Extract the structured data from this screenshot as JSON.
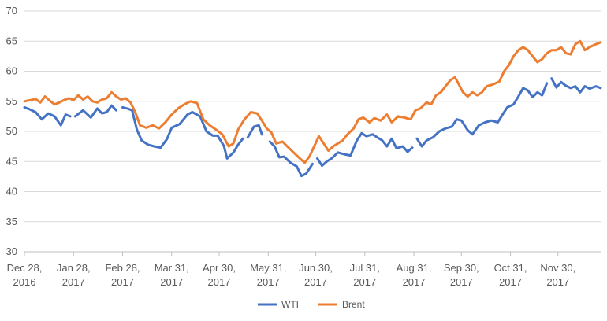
{
  "chart_data": {
    "type": "line",
    "title": "",
    "xlabel": "",
    "ylabel": "",
    "ylim": [
      30,
      70
    ],
    "yticks": [
      30,
      35,
      40,
      45,
      50,
      55,
      60,
      65,
      70
    ],
    "grid": true,
    "legend_position": "bottom",
    "x_range": [
      "2016-12-28",
      "2017-12-27"
    ],
    "x_ticks": [
      {
        "date": "2016-12-28",
        "line1": "Dec 28,",
        "line2": "2016"
      },
      {
        "date": "2017-01-28",
        "line1": "Jan 28,",
        "line2": "2017"
      },
      {
        "date": "2017-02-28",
        "line1": "Feb 28,",
        "line2": "2017"
      },
      {
        "date": "2017-03-31",
        "line1": "Mar 31,",
        "line2": "2017"
      },
      {
        "date": "2017-04-30",
        "line1": "Apr 30,",
        "line2": "2017"
      },
      {
        "date": "2017-05-31",
        "line1": "May 31,",
        "line2": "2017"
      },
      {
        "date": "2017-06-30",
        "line1": "Jun 30,",
        "line2": "2017"
      },
      {
        "date": "2017-07-31",
        "line1": "Jul 31,",
        "line2": "2017"
      },
      {
        "date": "2017-08-31",
        "line1": "Aug 31,",
        "line2": "2017"
      },
      {
        "date": "2017-09-30",
        "line1": "Sep 30,",
        "line2": "2017"
      },
      {
        "date": "2017-10-31",
        "line1": "Oct 31,",
        "line2": "2017"
      },
      {
        "date": "2017-11-30",
        "line1": "Nov 30,",
        "line2": "2017"
      }
    ],
    "series": [
      {
        "name": "WTI",
        "color": "#4472C4",
        "segments": [
          [
            [
              "2016-12-28",
              54.0
            ],
            [
              "2016-12-31",
              53.7
            ],
            [
              "2017-01-04",
              53.2
            ],
            [
              "2017-01-08",
              52.0
            ],
            [
              "2017-01-12",
              53.0
            ],
            [
              "2017-01-16",
              52.5
            ],
            [
              "2017-01-20",
              51.0
            ],
            [
              "2017-01-23",
              52.8
            ],
            [
              "2017-01-26",
              52.5
            ]
          ],
          [
            [
              "2017-01-29",
              52.5
            ],
            [
              "2017-02-03",
              53.5
            ],
            [
              "2017-02-08",
              52.3
            ],
            [
              "2017-02-12",
              53.8
            ],
            [
              "2017-02-15",
              53.0
            ],
            [
              "2017-02-18",
              53.2
            ],
            [
              "2017-02-21",
              54.3
            ],
            [
              "2017-02-24",
              53.5
            ]
          ],
          [
            [
              "2017-02-28",
              54.0
            ],
            [
              "2017-03-03",
              53.8
            ],
            [
              "2017-03-06",
              53.5
            ],
            [
              "2017-03-09",
              50.3
            ],
            [
              "2017-03-12",
              48.5
            ],
            [
              "2017-03-16",
              47.8
            ],
            [
              "2017-03-20",
              47.5
            ],
            [
              "2017-03-24",
              47.3
            ],
            [
              "2017-03-28",
              48.7
            ],
            [
              "2017-03-31",
              50.6
            ],
            [
              "2017-04-05",
              51.2
            ],
            [
              "2017-04-10",
              52.8
            ],
            [
              "2017-04-13",
              53.2
            ],
            [
              "2017-04-18",
              52.5
            ],
            [
              "2017-04-22",
              50.0
            ],
            [
              "2017-04-26",
              49.3
            ],
            [
              "2017-04-29",
              49.3
            ],
            [
              "2017-05-03",
              47.6
            ],
            [
              "2017-05-05",
              45.5
            ],
            [
              "2017-05-09",
              46.5
            ],
            [
              "2017-05-12",
              47.8
            ],
            [
              "2017-05-15",
              48.8
            ]
          ],
          [
            [
              "2017-05-18",
              49.0
            ],
            [
              "2017-05-22",
              50.8
            ],
            [
              "2017-05-25",
              51.0
            ],
            [
              "2017-05-27",
              49.5
            ]
          ],
          [
            [
              "2017-06-01",
              48.3
            ],
            [
              "2017-06-04",
              47.5
            ],
            [
              "2017-06-07",
              45.7
            ],
            [
              "2017-06-10",
              45.8
            ],
            [
              "2017-06-14",
              44.8
            ],
            [
              "2017-06-18",
              44.2
            ],
            [
              "2017-06-21",
              42.6
            ],
            [
              "2017-06-24",
              43.0
            ],
            [
              "2017-06-28",
              44.6
            ]
          ],
          [
            [
              "2017-07-01",
              45.5
            ],
            [
              "2017-07-04",
              44.3
            ],
            [
              "2017-07-07",
              45.0
            ],
            [
              "2017-07-10",
              45.5
            ],
            [
              "2017-07-14",
              46.5
            ],
            [
              "2017-07-18",
              46.2
            ],
            [
              "2017-07-22",
              46.0
            ],
            [
              "2017-07-26",
              48.5
            ],
            [
              "2017-07-29",
              49.7
            ],
            [
              "2017-08-01",
              49.2
            ],
            [
              "2017-08-05",
              49.5
            ],
            [
              "2017-08-08",
              49.0
            ],
            [
              "2017-08-11",
              48.5
            ],
            [
              "2017-08-14",
              47.5
            ],
            [
              "2017-08-17",
              48.8
            ],
            [
              "2017-08-20",
              47.2
            ],
            [
              "2017-08-24",
              47.5
            ],
            [
              "2017-08-27",
              46.6
            ],
            [
              "2017-08-30",
              47.3
            ]
          ],
          [
            [
              "2017-09-02",
              48.8
            ],
            [
              "2017-09-05",
              47.5
            ],
            [
              "2017-09-08",
              48.5
            ],
            [
              "2017-09-12",
              49.0
            ],
            [
              "2017-09-16",
              50.0
            ],
            [
              "2017-09-20",
              50.5
            ],
            [
              "2017-09-24",
              50.8
            ],
            [
              "2017-09-27",
              52.0
            ],
            [
              "2017-09-30",
              51.8
            ],
            [
              "2017-10-04",
              50.2
            ],
            [
              "2017-10-07",
              49.5
            ],
            [
              "2017-10-11",
              51.0
            ],
            [
              "2017-10-15",
              51.5
            ],
            [
              "2017-10-19",
              51.8
            ],
            [
              "2017-10-23",
              51.5
            ],
            [
              "2017-10-26",
              52.8
            ],
            [
              "2017-10-29",
              54.0
            ],
            [
              "2017-11-02",
              54.5
            ],
            [
              "2017-11-05",
              55.8
            ],
            [
              "2017-11-08",
              57.2
            ],
            [
              "2017-11-11",
              56.8
            ],
            [
              "2017-11-14",
              55.7
            ],
            [
              "2017-11-17",
              56.5
            ],
            [
              "2017-11-20",
              56.0
            ],
            [
              "2017-11-23",
              58.0
            ]
          ],
          [
            [
              "2017-11-26",
              58.8
            ],
            [
              "2017-11-29",
              57.3
            ],
            [
              "2017-12-02",
              58.2
            ],
            [
              "2017-12-05",
              57.6
            ],
            [
              "2017-12-08",
              57.2
            ],
            [
              "2017-12-11",
              57.5
            ],
            [
              "2017-12-14",
              56.5
            ],
            [
              "2017-12-17",
              57.5
            ],
            [
              "2017-12-20",
              57.1
            ],
            [
              "2017-12-24",
              57.5
            ],
            [
              "2017-12-27",
              57.2
            ]
          ]
        ]
      },
      {
        "name": "Brent",
        "color": "#ED7D31",
        "segments": [
          [
            [
              "2016-12-28",
              55.0
            ],
            [
              "2017-01-01",
              55.2
            ],
            [
              "2017-01-04",
              55.4
            ],
            [
              "2017-01-07",
              54.8
            ],
            [
              "2017-01-10",
              55.8
            ],
            [
              "2017-01-13",
              55.1
            ],
            [
              "2017-01-16",
              54.5
            ],
            [
              "2017-01-19",
              54.8
            ],
            [
              "2017-01-22",
              55.2
            ],
            [
              "2017-01-25",
              55.5
            ],
            [
              "2017-01-28",
              55.2
            ],
            [
              "2017-01-31",
              56.0
            ],
            [
              "2017-02-03",
              55.3
            ],
            [
              "2017-02-06",
              55.8
            ],
            [
              "2017-02-09",
              55.0
            ],
            [
              "2017-02-12",
              54.8
            ],
            [
              "2017-02-15",
              55.3
            ],
            [
              "2017-02-18",
              55.5
            ],
            [
              "2017-02-21",
              56.5
            ],
            [
              "2017-02-24",
              55.8
            ],
            [
              "2017-02-27",
              55.3
            ],
            [
              "2017-03-02",
              55.5
            ],
            [
              "2017-03-05",
              54.8
            ],
            [
              "2017-03-08",
              53.2
            ],
            [
              "2017-03-11",
              51.0
            ],
            [
              "2017-03-15",
              50.6
            ],
            [
              "2017-03-19",
              51.0
            ],
            [
              "2017-03-23",
              50.5
            ],
            [
              "2017-03-27",
              51.5
            ],
            [
              "2017-03-31",
              52.8
            ],
            [
              "2017-04-04",
              53.8
            ],
            [
              "2017-04-08",
              54.5
            ],
            [
              "2017-04-12",
              55.0
            ],
            [
              "2017-04-16",
              54.7
            ],
            [
              "2017-04-20",
              52.0
            ],
            [
              "2017-04-24",
              51.0
            ],
            [
              "2017-04-28",
              50.3
            ],
            [
              "2017-05-02",
              49.5
            ],
            [
              "2017-05-06",
              47.5
            ],
            [
              "2017-05-09",
              48.0
            ],
            [
              "2017-05-12",
              50.3
            ],
            [
              "2017-05-16",
              52.0
            ],
            [
              "2017-05-20",
              53.2
            ],
            [
              "2017-05-24",
              53.0
            ],
            [
              "2017-05-27",
              51.8
            ],
            [
              "2017-05-30",
              50.5
            ],
            [
              "2017-06-02",
              49.8
            ],
            [
              "2017-06-05",
              48.0
            ],
            [
              "2017-06-09",
              48.3
            ],
            [
              "2017-06-12",
              47.5
            ],
            [
              "2017-06-16",
              46.5
            ],
            [
              "2017-06-20",
              45.5
            ],
            [
              "2017-06-23",
              44.8
            ],
            [
              "2017-06-26",
              45.8
            ],
            [
              "2017-06-29",
              47.5
            ],
            [
              "2017-07-02",
              49.2
            ],
            [
              "2017-07-05",
              48.0
            ],
            [
              "2017-07-08",
              46.8
            ],
            [
              "2017-07-11",
              47.5
            ],
            [
              "2017-07-14",
              48.0
            ],
            [
              "2017-07-17",
              48.5
            ],
            [
              "2017-07-20",
              49.5
            ],
            [
              "2017-07-24",
              50.5
            ],
            [
              "2017-07-27",
              52.0
            ],
            [
              "2017-07-30",
              52.3
            ],
            [
              "2017-08-03",
              51.5
            ],
            [
              "2017-08-06",
              52.2
            ],
            [
              "2017-08-10",
              51.8
            ],
            [
              "2017-08-14",
              52.8
            ],
            [
              "2017-08-17",
              51.5
            ],
            [
              "2017-08-21",
              52.5
            ],
            [
              "2017-08-25",
              52.3
            ],
            [
              "2017-08-29",
              52.0
            ],
            [
              "2017-09-01",
              53.5
            ],
            [
              "2017-09-04",
              53.8
            ],
            [
              "2017-09-08",
              54.8
            ],
            [
              "2017-09-11",
              54.5
            ],
            [
              "2017-09-14",
              56.0
            ],
            [
              "2017-09-17",
              56.5
            ],
            [
              "2017-09-20",
              57.5
            ],
            [
              "2017-09-23",
              58.5
            ],
            [
              "2017-09-26",
              59.0
            ],
            [
              "2017-09-28",
              58.0
            ],
            [
              "2017-10-01",
              56.5
            ],
            [
              "2017-10-04",
              55.8
            ],
            [
              "2017-10-07",
              56.5
            ],
            [
              "2017-10-10",
              56.0
            ],
            [
              "2017-10-13",
              56.5
            ],
            [
              "2017-10-16",
              57.5
            ],
            [
              "2017-10-20",
              57.8
            ],
            [
              "2017-10-24",
              58.3
            ],
            [
              "2017-10-27",
              60.0
            ],
            [
              "2017-10-30",
              61.0
            ],
            [
              "2017-11-02",
              62.5
            ],
            [
              "2017-11-05",
              63.5
            ],
            [
              "2017-11-08",
              64.0
            ],
            [
              "2017-11-11",
              63.5
            ],
            [
              "2017-11-14",
              62.5
            ],
            [
              "2017-11-17",
              61.5
            ],
            [
              "2017-11-20",
              62.0
            ],
            [
              "2017-11-23",
              63.0
            ],
            [
              "2017-11-26",
              63.5
            ],
            [
              "2017-11-29",
              63.5
            ],
            [
              "2017-12-02",
              64.0
            ],
            [
              "2017-12-05",
              63.0
            ],
            [
              "2017-12-08",
              62.8
            ],
            [
              "2017-12-11",
              64.5
            ],
            [
              "2017-12-14",
              65.0
            ],
            [
              "2017-12-17",
              63.5
            ],
            [
              "2017-12-20",
              64.0
            ],
            [
              "2017-12-24",
              64.5
            ],
            [
              "2017-12-27",
              64.8
            ]
          ]
        ]
      }
    ]
  }
}
